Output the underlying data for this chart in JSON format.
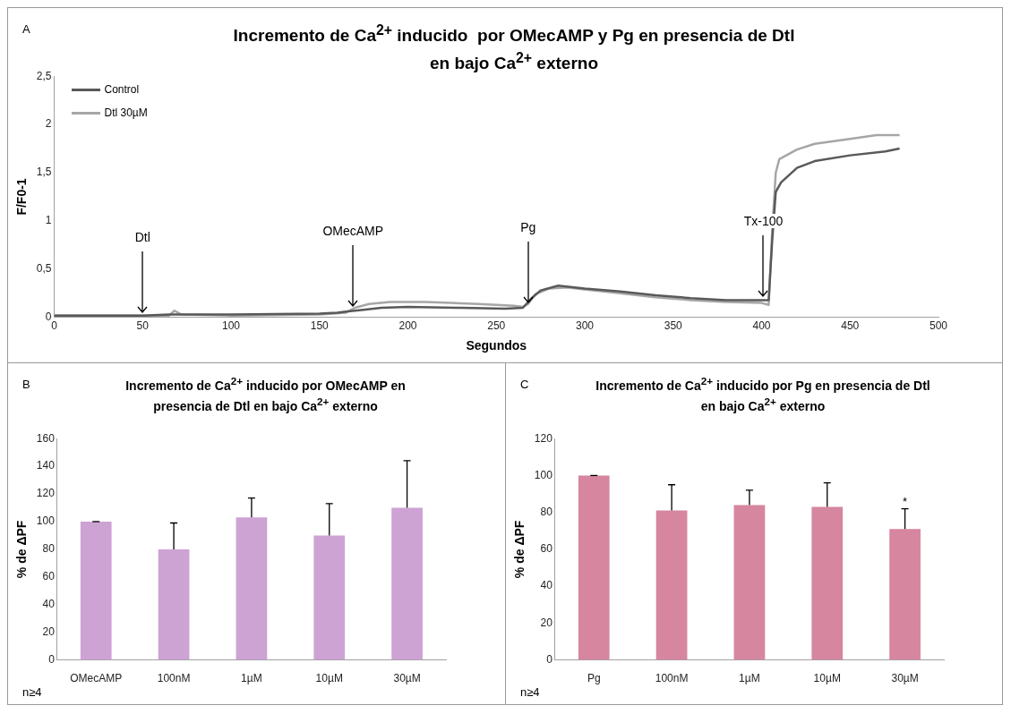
{
  "chart_data": [
    {
      "type": "line",
      "title": "Incremento de Ca$^{2+}$ inducido  por OMecAMP y Pg en presencia de Dtl\nen bajo Ca$^{2+}$ externo",
      "xlabel": "Segundos",
      "ylabel": "F/F0-1",
      "xlim": [
        0,
        500
      ],
      "xticks": [
        0,
        50,
        100,
        150,
        200,
        250,
        300,
        350,
        400,
        450,
        500
      ],
      "ylim": [
        0,
        2.5
      ],
      "yticks": [
        {
          "value": 0,
          "label": "0"
        },
        {
          "value": 0.5,
          "label": "0,5"
        },
        {
          "value": 1,
          "label": "1"
        },
        {
          "value": 1.5,
          "label": "1,5"
        },
        {
          "value": 2,
          "label": "2"
        },
        {
          "value": 2.5,
          "label": "2,5"
        }
      ],
      "legend": "top left",
      "grid": false,
      "marker": "none",
      "line_style": "solid",
      "series": [
        {
          "name": "Control",
          "color": "#595959",
          "x": [
            0,
            50,
            65,
            100,
            150,
            160,
            165,
            175,
            185,
            200,
            230,
            255,
            265,
            270,
            275,
            285,
            300,
            320,
            340,
            360,
            380,
            400,
            404,
            406,
            408,
            411,
            420,
            430,
            450,
            470,
            478
          ],
          "values": [
            0.02,
            0.02,
            0.03,
            0.03,
            0.04,
            0.05,
            0.06,
            0.08,
            0.1,
            0.11,
            0.1,
            0.09,
            0.1,
            0.2,
            0.28,
            0.33,
            0.3,
            0.27,
            0.23,
            0.2,
            0.18,
            0.18,
            0.18,
            0.8,
            1.3,
            1.4,
            1.55,
            1.62,
            1.68,
            1.72,
            1.75
          ]
        },
        {
          "name": "Dtl 30µM",
          "color": "#a6a6a6",
          "x": [
            0,
            65,
            68,
            72,
            100,
            150,
            165,
            170,
            178,
            190,
            210,
            240,
            260,
            265,
            268,
            272,
            280,
            290,
            300,
            320,
            340,
            360,
            380,
            400,
            404,
            406,
            408,
            410,
            420,
            430,
            450,
            465,
            478
          ],
          "values": [
            0.02,
            0.02,
            0.07,
            0.03,
            0.02,
            0.03,
            0.05,
            0.1,
            0.14,
            0.16,
            0.16,
            0.14,
            0.12,
            0.11,
            0.14,
            0.24,
            0.3,
            0.31,
            0.29,
            0.25,
            0.21,
            0.18,
            0.16,
            0.15,
            0.13,
            0.9,
            1.5,
            1.64,
            1.74,
            1.8,
            1.85,
            1.89,
            1.89
          ]
        }
      ],
      "annotations": [
        "A",
        {
          "text": "Dtl",
          "x": 50,
          "y": 0.02
        },
        {
          "text": "OMecAMP",
          "x": 169,
          "y": 0.08
        },
        {
          "text": "Pg",
          "x": 268,
          "y": 0.12
        },
        {
          "text": "Tx-100",
          "x": 401,
          "y": 0.18
        }
      ]
    },
    {
      "type": "bar",
      "title": "Incremento de Ca$^{2+}$ inducido por OMecAMP en\npresencia de Dtl en bajo Ca$^{2+}$ externo",
      "ylabel": "% de ΔPF",
      "categories": [
        "OMecAMP",
        "100nM",
        "1µM",
        "10µM",
        "30µM"
      ],
      "values": [
        100,
        80,
        103,
        90,
        110
      ],
      "errors": [
        [
          100,
          100
        ],
        [
          80,
          99
        ],
        [
          103,
          117
        ],
        [
          90,
          113
        ],
        [
          110,
          144
        ]
      ],
      "color": "#cda3d4",
      "ylim": [
        0,
        160
      ],
      "yticks": [
        0,
        20,
        40,
        60,
        80,
        100,
        120,
        140,
        160
      ],
      "grid": false,
      "annotations": [
        "B",
        "n≥4"
      ]
    },
    {
      "type": "bar",
      "title": "Incremento de Ca$^{2+}$ inducido por Pg en presencia de Dtl\nen bajo Ca$^{2+}$ externo",
      "ylabel": "% de ΔPF",
      "categories": [
        "Pg",
        "100nM",
        "1µM",
        "10µM",
        "30µM"
      ],
      "values": [
        100,
        81,
        84,
        83,
        71
      ],
      "errors": [
        [
          100,
          100
        ],
        [
          81,
          95
        ],
        [
          84,
          92
        ],
        [
          83,
          96
        ],
        [
          71,
          82
        ]
      ],
      "color": "#d6869f",
      "ylim": [
        0,
        120
      ],
      "yticks": [
        0,
        20,
        40,
        60,
        80,
        100,
        120
      ],
      "grid": false,
      "annotations": [
        "C",
        "n≥4",
        {
          "text": "*",
          "x": "30µM",
          "y": 82
        }
      ]
    }
  ]
}
